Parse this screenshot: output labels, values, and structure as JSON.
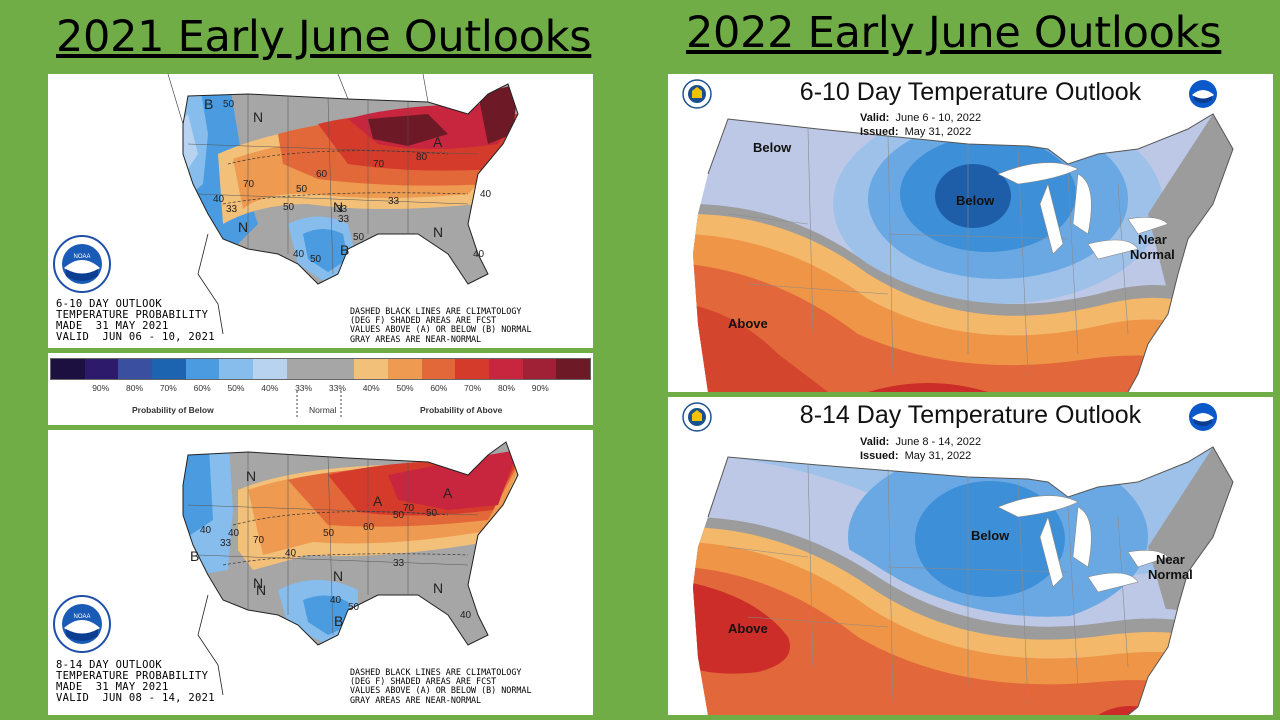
{
  "titles": {
    "left": "2021 Early June Outlooks",
    "right": "2022 Early June Outlooks"
  },
  "cpc_2021_610": {
    "caption": [
      "6-10 DAY OUTLOOK",
      "TEMPERATURE PROBABILITY",
      "MADE  31 MAY 2021",
      "VALID  JUN 06 - 10, 2021"
    ],
    "note": [
      "DASHED BLACK LINES ARE CLIMATOLOGY",
      "(DEG F) SHADED AREAS ARE FCST",
      "VALUES ABOVE (A) OR BELOW (B) NORMAL",
      "GRAY AREAS ARE NEAR-NORMAL"
    ],
    "labels": [
      "B",
      "N",
      "A",
      "N",
      "N",
      "B",
      "N"
    ],
    "nums": [
      "50",
      "50",
      "60",
      "70",
      "80",
      "70",
      "50",
      "33",
      "33",
      "50",
      "40",
      "50",
      "40",
      "33",
      "33",
      "40",
      "40"
    ]
  },
  "legend_2021": {
    "ticks": [
      "90%",
      "80%",
      "70%",
      "60%",
      "50%",
      "40%",
      "33%",
      "33%",
      "40%",
      "50%",
      "60%",
      "70%",
      "80%",
      "90%"
    ],
    "below": "Probability of Below",
    "normal": "Normal",
    "above": "Probability of Above",
    "colors": [
      "#1b1040",
      "#2e1a6b",
      "#3b4fa0",
      "#1c64b0",
      "#4a9be0",
      "#86bdec",
      "#b8d3ef",
      "#a6a6a6",
      "#a6a6a6",
      "#f3c079",
      "#ee9a50",
      "#e2683a",
      "#d43b2b",
      "#c8263e",
      "#a02035",
      "#6e1a26"
    ]
  },
  "cpc_2021_814": {
    "caption": [
      "8-14 DAY OUTLOOK",
      "TEMPERATURE PROBABILITY",
      "MADE  31 MAY 2021",
      "VALID  JUN 08 - 14, 2021"
    ],
    "note": [
      "DASHED BLACK LINES ARE CLIMATOLOGY",
      "(DEG F) SHADED AREAS ARE FCST",
      "VALUES ABOVE (A) OR BELOW (B) NORMAL",
      "GRAY AREAS ARE NEAR-NORMAL"
    ],
    "labels": [
      "N",
      "B",
      "N",
      "A",
      "N",
      "N",
      "A",
      "B",
      "N"
    ],
    "nums": [
      "40",
      "33",
      "40",
      "50",
      "70",
      "60",
      "50",
      "70",
      "50",
      "40",
      "33",
      "40",
      "50",
      "40"
    ]
  },
  "map_2022_610": {
    "title": "6-10 Day Temperature Outlook",
    "valid_label": "Valid:",
    "valid": "June 6 - 10, 2022",
    "issued_label": "Issued:",
    "issued": "May 31, 2022",
    "labels": {
      "below_nw": "Below",
      "below_center": "Below",
      "near_normal": "Near\nNormal",
      "above": "Above"
    }
  },
  "map_2022_814": {
    "title": "8-14 Day Temperature Outlook",
    "valid_label": "Valid:",
    "valid": "June 8 - 14, 2022",
    "issued_label": "Issued:",
    "issued": "May 31, 2022",
    "labels": {
      "below_center": "Below",
      "near_normal": "Near\nNormal",
      "above": "Above"
    }
  },
  "logos": {
    "noaa_text": "NOAA"
  }
}
